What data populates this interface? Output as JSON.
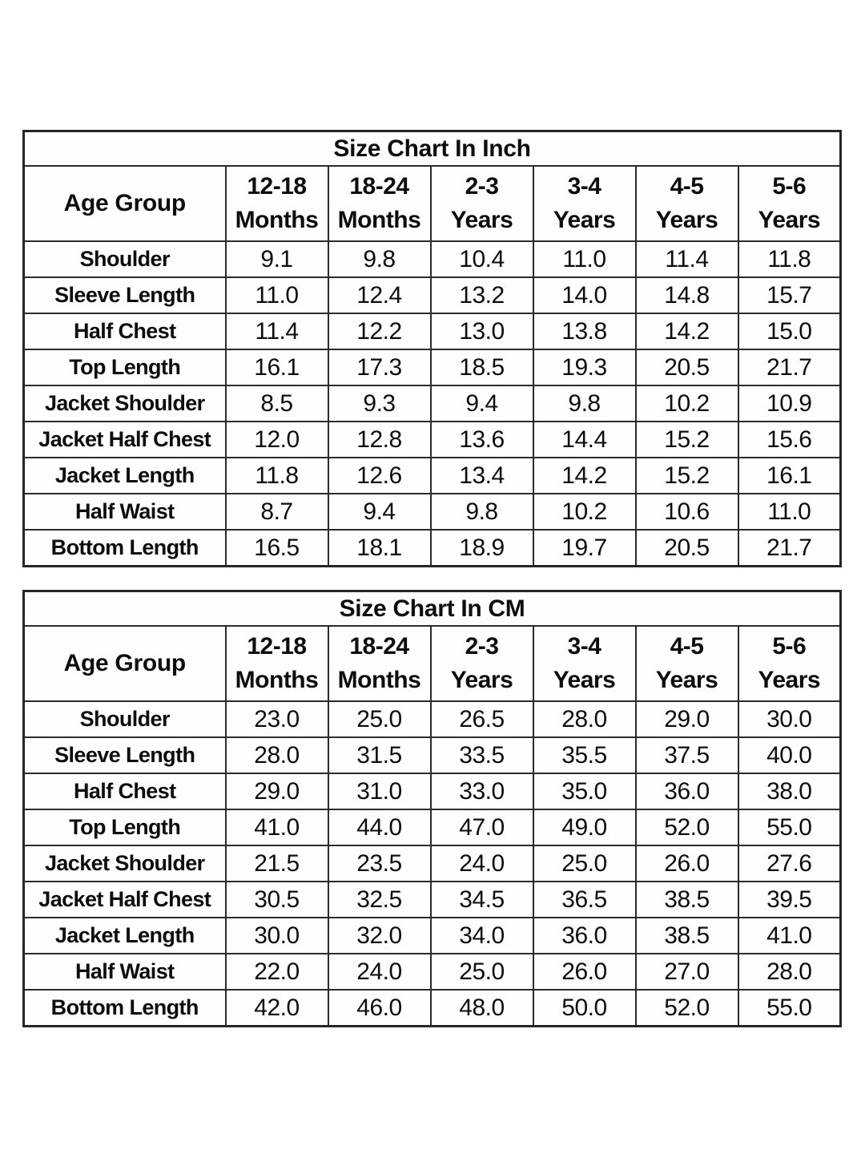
{
  "page": {
    "background": "#ffffff",
    "border_color": "#2b2b2b",
    "text_color": "#0d0d0d"
  },
  "chart_data": [
    {
      "type": "table",
      "title": "Size Chart In Inch",
      "corner_label": "Age Group",
      "columns": [
        [
          "12-18",
          "Months"
        ],
        [
          "18-24",
          "Months"
        ],
        [
          "2-3",
          "Years"
        ],
        [
          "3-4",
          "Years"
        ],
        [
          "4-5",
          "Years"
        ],
        [
          "5-6",
          "Years"
        ]
      ],
      "rows": [
        {
          "label": "Shoulder",
          "values": [
            "9.1",
            "9.8",
            "10.4",
            "11.0",
            "11.4",
            "11.8"
          ]
        },
        {
          "label": "Sleeve Length",
          "values": [
            "11.0",
            "12.4",
            "13.2",
            "14.0",
            "14.8",
            "15.7"
          ]
        },
        {
          "label": "Half Chest",
          "values": [
            "11.4",
            "12.2",
            "13.0",
            "13.8",
            "14.2",
            "15.0"
          ]
        },
        {
          "label": "Top Length",
          "values": [
            "16.1",
            "17.3",
            "18.5",
            "19.3",
            "20.5",
            "21.7"
          ]
        },
        {
          "label": "Jacket Shoulder",
          "values": [
            "8.5",
            "9.3",
            "9.4",
            "9.8",
            "10.2",
            "10.9"
          ]
        },
        {
          "label": "Jacket Half Chest",
          "values": [
            "12.0",
            "12.8",
            "13.6",
            "14.4",
            "15.2",
            "15.6"
          ]
        },
        {
          "label": "Jacket Length",
          "values": [
            "11.8",
            "12.6",
            "13.4",
            "14.2",
            "15.2",
            "16.1"
          ]
        },
        {
          "label": "Half Waist",
          "values": [
            "8.7",
            "9.4",
            "9.8",
            "10.2",
            "10.6",
            "11.0"
          ]
        },
        {
          "label": "Bottom Length",
          "values": [
            "16.5",
            "18.1",
            "18.9",
            "19.7",
            "20.5",
            "21.7"
          ]
        }
      ]
    },
    {
      "type": "table",
      "title": "Size Chart In CM",
      "corner_label": "Age Group",
      "columns": [
        [
          "12-18",
          "Months"
        ],
        [
          "18-24",
          "Months"
        ],
        [
          "2-3",
          "Years"
        ],
        [
          "3-4",
          "Years"
        ],
        [
          "4-5",
          "Years"
        ],
        [
          "5-6",
          "Years"
        ]
      ],
      "rows": [
        {
          "label": "Shoulder",
          "values": [
            "23.0",
            "25.0",
            "26.5",
            "28.0",
            "29.0",
            "30.0"
          ]
        },
        {
          "label": "Sleeve Length",
          "values": [
            "28.0",
            "31.5",
            "33.5",
            "35.5",
            "37.5",
            "40.0"
          ]
        },
        {
          "label": "Half Chest",
          "values": [
            "29.0",
            "31.0",
            "33.0",
            "35.0",
            "36.0",
            "38.0"
          ]
        },
        {
          "label": "Top Length",
          "values": [
            "41.0",
            "44.0",
            "47.0",
            "49.0",
            "52.0",
            "55.0"
          ]
        },
        {
          "label": "Jacket Shoulder",
          "values": [
            "21.5",
            "23.5",
            "24.0",
            "25.0",
            "26.0",
            "27.6"
          ]
        },
        {
          "label": "Jacket Half Chest",
          "values": [
            "30.5",
            "32.5",
            "34.5",
            "36.5",
            "38.5",
            "39.5"
          ]
        },
        {
          "label": "Jacket Length",
          "values": [
            "30.0",
            "32.0",
            "34.0",
            "36.0",
            "38.5",
            "41.0"
          ]
        },
        {
          "label": "Half Waist",
          "values": [
            "22.0",
            "24.0",
            "25.0",
            "26.0",
            "27.0",
            "28.0"
          ]
        },
        {
          "label": "Bottom Length",
          "values": [
            "42.0",
            "46.0",
            "48.0",
            "50.0",
            "52.0",
            "55.0"
          ]
        }
      ]
    }
  ]
}
